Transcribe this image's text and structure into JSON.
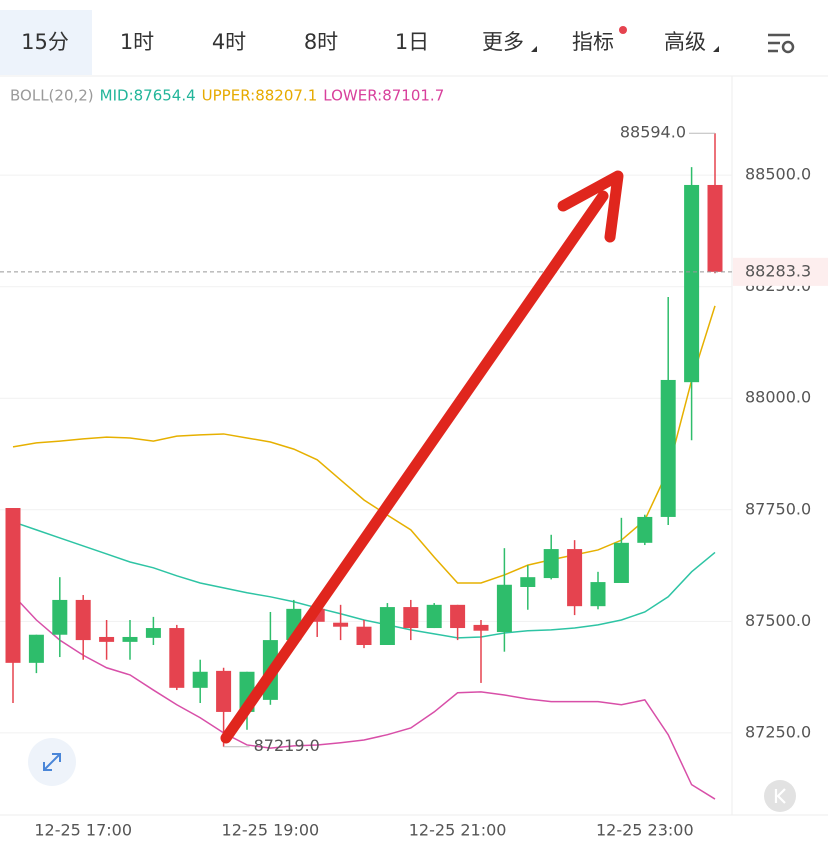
{
  "tabs": [
    "15分",
    "1时",
    "4时",
    "8时",
    "1日",
    "更多",
    "指标",
    "高级"
  ],
  "selected_tab": 0,
  "chart_data": {
    "type": "candlestick",
    "indicator_legend": [
      {
        "text": "BOLL(20,2)",
        "color": "#9a9a9a"
      },
      {
        "text": "MID:87654.4",
        "color": "#22b59a"
      },
      {
        "text": "UPPER:88207.1",
        "color": "#e6aa00"
      },
      {
        "text": "LOWER:87101.7",
        "color": "#d8409c"
      }
    ],
    "categories": [
      null,
      null,
      null,
      "12-25 17:00",
      null,
      null,
      null,
      null,
      null,
      null,
      null,
      "12-25 19:00",
      null,
      null,
      null,
      null,
      null,
      null,
      null,
      "12-25 21:00",
      null,
      null,
      null,
      null,
      null,
      null,
      null,
      "12-25 23:00",
      null,
      null,
      null
    ],
    "open": [
      87754,
      87407,
      87470,
      87548,
      87465,
      87454,
      87463,
      87485,
      87351,
      87389,
      87297,
      87324,
      87458,
      87528,
      87497,
      87488,
      87447,
      87532,
      87485,
      87537,
      87492,
      87476,
      87577,
      87597,
      87662,
      87534,
      87586,
      87676,
      87734,
      88036,
      88478
    ],
    "high": [
      87754,
      87470,
      87599,
      87559,
      87503,
      87503,
      87510,
      87492,
      87414,
      87396,
      87387,
      87521,
      87548,
      87548,
      87537,
      87503,
      87541,
      87548,
      87541,
      87537,
      87503,
      87664,
      87626,
      87694,
      87682,
      87611,
      87732,
      87739,
      88227,
      88518,
      88594
    ],
    "low": [
      87317,
      87384,
      87420,
      87414,
      87414,
      87414,
      87447,
      87346,
      87317,
      87219,
      87257,
      87313,
      87458,
      87465,
      87458,
      87440,
      87447,
      87458,
      87485,
      87458,
      87362,
      87432,
      87526,
      87594,
      87514,
      87527,
      87586,
      87671,
      87716,
      87906,
      88280
    ],
    "close": [
      87407,
      87470,
      87548,
      87458,
      87454,
      87465,
      87485,
      87351,
      87387,
      87297,
      87387,
      87458,
      87528,
      87499,
      87488,
      87447,
      87532,
      87485,
      87537,
      87485,
      87479,
      87582,
      87599,
      87662,
      87534,
      87588,
      87676,
      87734,
      88041,
      88478,
      88283.3
    ],
    "up_color": "#2ebd6b",
    "down_color": "#e5434f",
    "overlays": [
      {
        "name": "UPPER",
        "color": "#e6b000",
        "values": [
          87891,
          87900,
          87904,
          87909,
          87913,
          87911,
          87904,
          87915,
          87918,
          87920,
          87911,
          87902,
          87886,
          87862,
          87817,
          87772,
          87738,
          87705,
          87644,
          87586,
          87586,
          87604,
          87626,
          87638,
          87649,
          87660,
          87682,
          87727,
          87839,
          88040,
          88207.1
        ]
      },
      {
        "name": "MID",
        "color": "#2ec4a4",
        "values": [
          87723,
          87705,
          87687,
          87669,
          87651,
          87633,
          87620,
          87602,
          87586,
          87575,
          87564,
          87555,
          87544,
          87530,
          87517,
          87503,
          87492,
          87481,
          87472,
          87463,
          87465,
          87474,
          87479,
          87481,
          87485,
          87492,
          87503,
          87521,
          87555,
          87611,
          87654.4
        ]
      },
      {
        "name": "LOWER",
        "color": "#d84fa8",
        "values": [
          87559,
          87503,
          87458,
          87424,
          87396,
          87380,
          87346,
          87313,
          87284,
          87250,
          87223,
          87216,
          87221,
          87223,
          87228,
          87234,
          87246,
          87261,
          87297,
          87340,
          87342,
          87335,
          87326,
          87320,
          87320,
          87320,
          87313,
          87324,
          87246,
          87134,
          87101.7
        ]
      }
    ],
    "ylim": [
      87066,
      88646
    ],
    "yticks": [
      {
        "value": 87250,
        "label": "87250.0"
      },
      {
        "value": 87500,
        "label": "87500.0"
      },
      {
        "value": 87750,
        "label": "87750.0"
      },
      {
        "value": 88000,
        "label": "88000.0"
      },
      {
        "value": 88250,
        "label": "88250.0"
      },
      {
        "value": 88500,
        "label": "88500.0"
      }
    ],
    "grid": true,
    "last_price": {
      "value": 88283.3,
      "label": "88283.3"
    },
    "max_label": {
      "value": 88594,
      "label": "88594.0",
      "index": 30
    },
    "min_label": {
      "value": 87219,
      "label": "87219.0",
      "index": 9
    }
  }
}
